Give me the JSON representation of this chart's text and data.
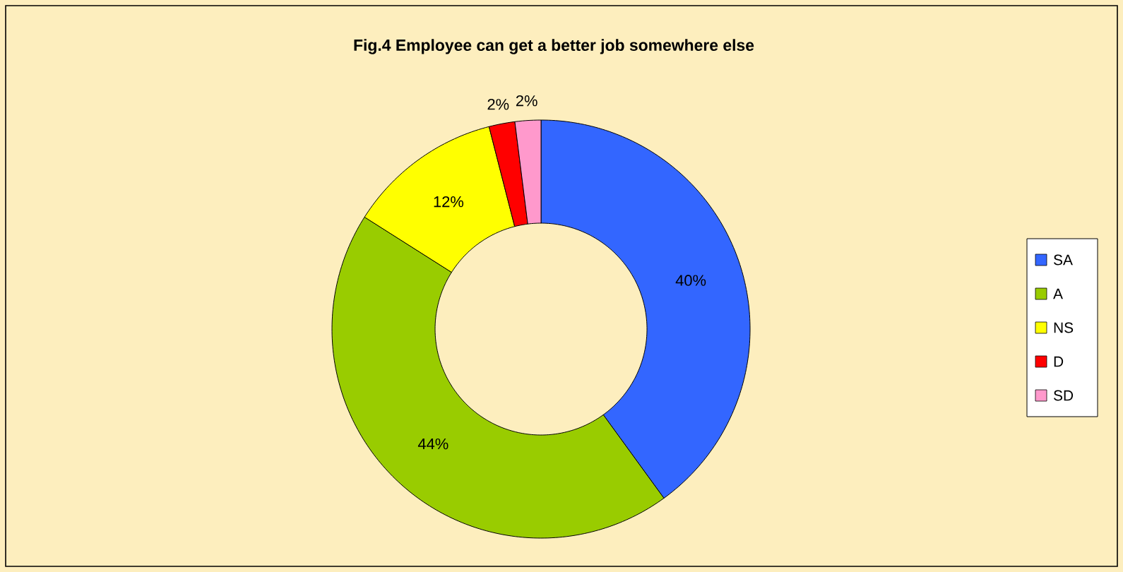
{
  "chart_data": {
    "type": "donut",
    "title": "Fig.4 Employee can get a better job somewhere else",
    "categories": [
      "SA",
      "A",
      "NS",
      "D",
      "SD"
    ],
    "values": [
      40,
      44,
      12,
      2,
      2
    ],
    "value_labels": [
      "40%",
      "44%",
      "12%",
      "2%",
      "2%"
    ],
    "colors": [
      "#3366ff",
      "#99cc00",
      "#ffff00",
      "#ff0000",
      "#ff99cc"
    ],
    "legend": "right"
  }
}
